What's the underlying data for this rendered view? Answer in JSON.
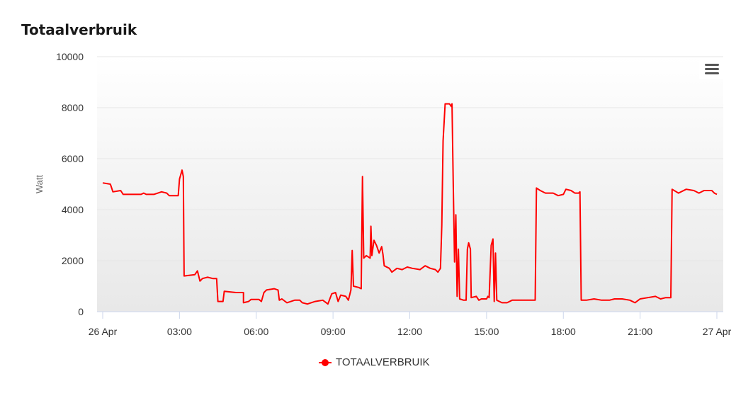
{
  "chart_data": {
    "type": "line",
    "title": "Totaalverbruik",
    "ylabel": "Watt",
    "xlabel": "",
    "ylim": [
      0,
      10000
    ],
    "yticks": [
      "0",
      "2000",
      "4000",
      "6000",
      "8000",
      "10000"
    ],
    "xticks": [
      "26 Apr",
      "03:00",
      "06:00",
      "09:00",
      "12:00",
      "15:00",
      "18:00",
      "21:00",
      "27 Apr"
    ],
    "grid": true,
    "legend": "bottom-center",
    "series": [
      {
        "name": "TOTAALVERBRUIK",
        "color": "#ff0000",
        "x_unit": "hours since 26 Apr 00:00",
        "points": [
          [
            0.0,
            5050
          ],
          [
            0.3,
            5000
          ],
          [
            0.4,
            4700
          ],
          [
            0.7,
            4750
          ],
          [
            0.8,
            4600
          ],
          [
            1.5,
            4600
          ],
          [
            1.6,
            4650
          ],
          [
            1.7,
            4600
          ],
          [
            2.0,
            4600
          ],
          [
            2.3,
            4700
          ],
          [
            2.5,
            4650
          ],
          [
            2.6,
            4550
          ],
          [
            2.95,
            4550
          ],
          [
            3.0,
            5200
          ],
          [
            3.1,
            5550
          ],
          [
            3.15,
            5300
          ],
          [
            3.18,
            1400
          ],
          [
            3.6,
            1450
          ],
          [
            3.7,
            1600
          ],
          [
            3.8,
            1200
          ],
          [
            3.9,
            1300
          ],
          [
            4.1,
            1350
          ],
          [
            4.3,
            1300
          ],
          [
            4.45,
            1300
          ],
          [
            4.5,
            400
          ],
          [
            4.7,
            400
          ],
          [
            4.75,
            800
          ],
          [
            5.2,
            750
          ],
          [
            5.5,
            750
          ],
          [
            5.5,
            350
          ],
          [
            5.7,
            400
          ],
          [
            5.8,
            480
          ],
          [
            6.1,
            480
          ],
          [
            6.2,
            400
          ],
          [
            6.3,
            750
          ],
          [
            6.4,
            850
          ],
          [
            6.7,
            900
          ],
          [
            6.85,
            850
          ],
          [
            6.9,
            450
          ],
          [
            7.0,
            500
          ],
          [
            7.2,
            350
          ],
          [
            7.5,
            450
          ],
          [
            7.7,
            450
          ],
          [
            7.8,
            350
          ],
          [
            8.0,
            300
          ],
          [
            8.3,
            400
          ],
          [
            8.6,
            450
          ],
          [
            8.8,
            300
          ],
          [
            8.95,
            700
          ],
          [
            9.1,
            750
          ],
          [
            9.2,
            400
          ],
          [
            9.3,
            650
          ],
          [
            9.5,
            600
          ],
          [
            9.6,
            450
          ],
          [
            9.7,
            850
          ],
          [
            9.75,
            2400
          ],
          [
            9.8,
            1000
          ],
          [
            10.0,
            950
          ],
          [
            10.1,
            900
          ],
          [
            10.15,
            5300
          ],
          [
            10.2,
            2100
          ],
          [
            10.3,
            2200
          ],
          [
            10.45,
            2100
          ],
          [
            10.48,
            3350
          ],
          [
            10.52,
            2200
          ],
          [
            10.6,
            2800
          ],
          [
            10.7,
            2600
          ],
          [
            10.8,
            2300
          ],
          [
            10.9,
            2550
          ],
          [
            10.95,
            2250
          ],
          [
            11.0,
            1800
          ],
          [
            11.2,
            1700
          ],
          [
            11.3,
            1550
          ],
          [
            11.5,
            1700
          ],
          [
            11.7,
            1650
          ],
          [
            11.9,
            1750
          ],
          [
            12.1,
            1700
          ],
          [
            12.4,
            1650
          ],
          [
            12.6,
            1800
          ],
          [
            12.8,
            1700
          ],
          [
            13.0,
            1650
          ],
          [
            13.1,
            1550
          ],
          [
            13.2,
            1700
          ],
          [
            13.25,
            3400
          ],
          [
            13.3,
            6700
          ],
          [
            13.38,
            8150
          ],
          [
            13.55,
            8150
          ],
          [
            13.62,
            8050
          ],
          [
            13.65,
            8150
          ],
          [
            13.7,
            4900
          ],
          [
            13.75,
            1950
          ],
          [
            13.8,
            3800
          ],
          [
            13.85,
            600
          ],
          [
            13.9,
            2450
          ],
          [
            13.95,
            500
          ],
          [
            14.1,
            450
          ],
          [
            14.2,
            450
          ],
          [
            14.25,
            2450
          ],
          [
            14.3,
            2700
          ],
          [
            14.37,
            2450
          ],
          [
            14.4,
            550
          ],
          [
            14.6,
            600
          ],
          [
            14.7,
            450
          ],
          [
            14.8,
            500
          ],
          [
            15.0,
            500
          ],
          [
            15.05,
            600
          ],
          [
            15.1,
            550
          ],
          [
            15.18,
            2600
          ],
          [
            15.25,
            2850
          ],
          [
            15.3,
            400
          ],
          [
            15.35,
            2300
          ],
          [
            15.4,
            450
          ],
          [
            15.6,
            350
          ],
          [
            15.8,
            350
          ],
          [
            16.0,
            450
          ],
          [
            16.3,
            450
          ],
          [
            16.6,
            450
          ],
          [
            16.9,
            450
          ],
          [
            16.95,
            4850
          ],
          [
            17.1,
            4750
          ],
          [
            17.3,
            4650
          ],
          [
            17.6,
            4650
          ],
          [
            17.8,
            4550
          ],
          [
            18.0,
            4600
          ],
          [
            18.1,
            4800
          ],
          [
            18.3,
            4750
          ],
          [
            18.45,
            4650
          ],
          [
            18.6,
            4650
          ],
          [
            18.65,
            4700
          ],
          [
            18.7,
            450
          ],
          [
            18.9,
            450
          ],
          [
            19.2,
            500
          ],
          [
            19.5,
            450
          ],
          [
            19.8,
            450
          ],
          [
            20.0,
            500
          ],
          [
            20.3,
            500
          ],
          [
            20.6,
            450
          ],
          [
            20.8,
            350
          ],
          [
            21.0,
            500
          ],
          [
            21.3,
            550
          ],
          [
            21.6,
            600
          ],
          [
            21.8,
            500
          ],
          [
            22.0,
            550
          ],
          [
            22.2,
            550
          ],
          [
            22.25,
            4800
          ],
          [
            22.5,
            4650
          ],
          [
            22.8,
            4800
          ],
          [
            23.1,
            4750
          ],
          [
            23.3,
            4650
          ],
          [
            23.5,
            4750
          ],
          [
            23.8,
            4750
          ],
          [
            23.9,
            4650
          ],
          [
            24.0,
            4600
          ]
        ]
      }
    ]
  }
}
